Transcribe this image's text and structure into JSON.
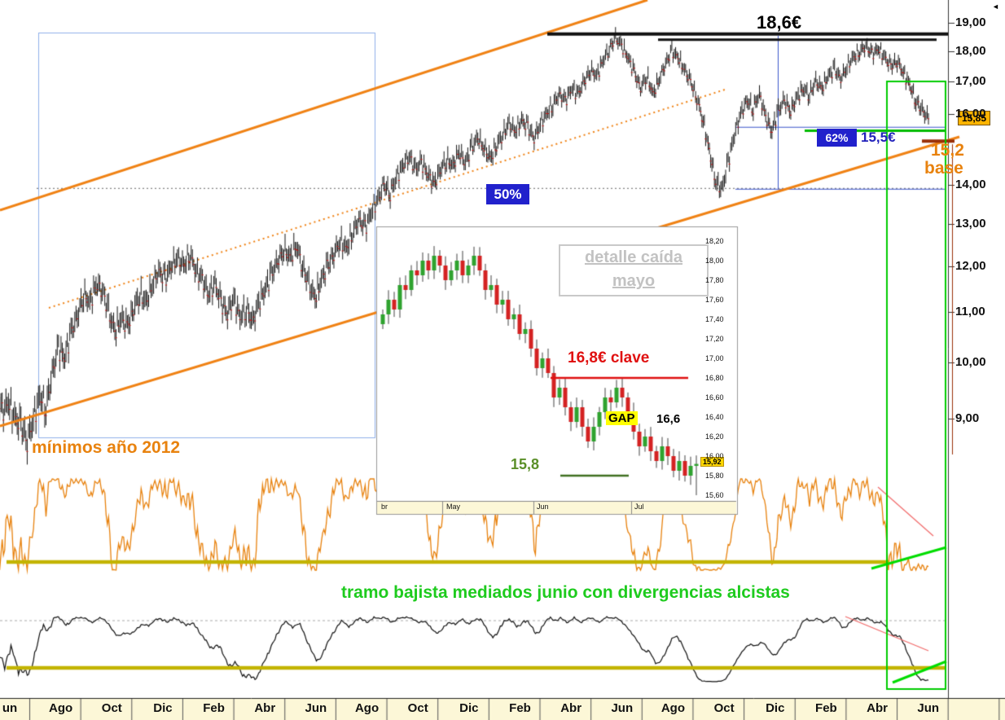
{
  "window": {
    "type": "stock-technical-analysis-chart"
  },
  "colors": {
    "orange": "#f08214",
    "olive": "#c3b400",
    "green_line": "#00bb00",
    "green_box": "#00cc00",
    "green_text": "#1ecb1e",
    "blue_badge": "#2121cc",
    "blue_text": "#2222bb",
    "red": "#e01010",
    "maroon": "#993008",
    "gray_title": "#c2c2c2",
    "tag_bg": "#ffb400",
    "cream": "#fcf7d7",
    "bar_black": "#151515",
    "bar_red": "#cc1111",
    "candle_up": "#2fa32f",
    "candle_down": "#d42222",
    "lightblue": "#8fb0ea",
    "blue_line": "#3a55cc"
  },
  "annotations": {
    "resistance_label": "18,6€",
    "fib50_label": "50%",
    "fib62_label": "62%",
    "level155_label": "15,5€",
    "price_tag": "15,85",
    "base_price": "15,2",
    "base_word": "base",
    "minimums_2012": "mínimos año 2012",
    "divergence_note": "tramo bajista mediados junio con divergencias alcistas",
    "scroll_arrow": "◄"
  },
  "inset": {
    "title_line1": "detalle caída",
    "title_line2": "mayo",
    "key_level_label": "16,8€ clave",
    "gap_label": "GAP",
    "gap_price": "16,6",
    "low_label": "15,8",
    "price_tag": "15,92",
    "axis_labels": [
      "18,20",
      "18,00",
      "17,80",
      "17,60",
      "17,40",
      "17,20",
      "17,00",
      "16,80",
      "16,60",
      "16,40",
      "16,20",
      "16,00",
      "15,80",
      "15,60"
    ],
    "month_labels": [
      "br",
      "May",
      "Jun",
      "Jul"
    ]
  },
  "axes": {
    "price_labels": [
      {
        "label": "19,00",
        "value": 19
      },
      {
        "label": "18,00",
        "value": 18
      },
      {
        "label": "17,00",
        "value": 17
      },
      {
        "label": "16,00",
        "value": 16
      },
      {
        "label": "14,00",
        "value": 14
      },
      {
        "label": "13,00",
        "value": 13
      },
      {
        "label": "12,00",
        "value": 12
      },
      {
        "label": "11,00",
        "value": 11
      },
      {
        "label": "10,00",
        "value": 10
      },
      {
        "label": "9,00",
        "value": 9
      }
    ],
    "month_labels": [
      "un",
      "Ago",
      "Oct",
      "Dic",
      "Feb",
      "Abr",
      "Jun",
      "Ago",
      "Oct",
      "Dic",
      "Feb",
      "Abr",
      "Jun",
      "Ago",
      "Oct",
      "Dic",
      "Feb",
      "Abr",
      "Jun"
    ]
  },
  "chart_data": [
    {
      "type": "bar",
      "name": "main-price-weekly",
      "period": "Jun 2012 - Jun 2015",
      "yscale": "log",
      "ylim": [
        8.4,
        19.6
      ],
      "levels": {
        "resistance": 18.6,
        "resistance2": 18.4,
        "fib50": 13.9,
        "fib62": 15.6,
        "support_green": 15.5,
        "base": 15.2,
        "last_price": 15.85
      },
      "weekly_closes": [
        9.4,
        9.1,
        9.3,
        9.0,
        8.9,
        8.65,
        9.0,
        9.4,
        9.2,
        9.8,
        10.3,
        10.1,
        10.6,
        10.9,
        11.4,
        11.2,
        11.6,
        11.5,
        11.0,
        10.6,
        10.9,
        10.7,
        11.1,
        11.4,
        11.2,
        11.6,
        11.9,
        11.7,
        12.0,
        12.2,
        12.0,
        12.3,
        11.9,
        11.7,
        11.4,
        11.6,
        11.2,
        11.0,
        11.3,
        10.9,
        11.1,
        10.8,
        11.2,
        11.5,
        11.8,
        12.1,
        12.4,
        12.2,
        12.5,
        12.0,
        11.6,
        11.3,
        11.7,
        12.0,
        12.3,
        12.6,
        12.4,
        12.8,
        13.1,
        12.9,
        13.3,
        13.6,
        14.0,
        13.8,
        14.2,
        14.5,
        14.8,
        14.4,
        14.6,
        14.3,
        14.0,
        14.4,
        14.7,
        14.5,
        14.9,
        14.6,
        15.0,
        15.3,
        15.0,
        14.7,
        15.1,
        15.4,
        15.7,
        15.5,
        15.8,
        15.6,
        15.3,
        15.7,
        16.0,
        16.3,
        16.6,
        16.4,
        16.8,
        16.6,
        17.0,
        17.4,
        17.2,
        17.7,
        18.1,
        18.45,
        18.2,
        17.8,
        17.3,
        16.8,
        17.2,
        16.6,
        17.1,
        17.6,
        18.0,
        17.8,
        17.4,
        17.0,
        16.5,
        15.8,
        14.9,
        14.1,
        13.85,
        14.6,
        15.4,
        16.0,
        16.4,
        16.2,
        16.6,
        15.9,
        15.5,
        16.1,
        16.4,
        16.1,
        16.5,
        16.8,
        16.6,
        17.0,
        16.8,
        17.2,
        17.4,
        17.1,
        17.5,
        17.8,
        18.0,
        18.2,
        17.9,
        18.1,
        17.8,
        17.5,
        17.7,
        17.3,
        16.9,
        16.4,
        16.1,
        15.85
      ]
    },
    {
      "type": "candlestick",
      "name": "inset-may-decline",
      "ylim": [
        15.55,
        18.25
      ],
      "levels": {
        "key": 16.8,
        "gap": 16.6,
        "low": 15.8,
        "last": 15.92
      },
      "closes": [
        17.45,
        17.6,
        17.5,
        17.75,
        17.7,
        17.9,
        17.85,
        18.0,
        17.9,
        18.05,
        17.95,
        17.8,
        17.9,
        18.0,
        17.85,
        17.95,
        18.05,
        17.9,
        17.7,
        17.75,
        17.55,
        17.6,
        17.4,
        17.45,
        17.25,
        17.3,
        17.1,
        16.9,
        17.0,
        16.85,
        16.6,
        16.7,
        16.5,
        16.35,
        16.5,
        16.3,
        16.15,
        16.3,
        16.45,
        16.6,
        16.55,
        16.7,
        16.6,
        16.45,
        16.25,
        16.1,
        16.2,
        16.05,
        15.95,
        16.1,
        16.0,
        15.85,
        15.95,
        15.8,
        15.9,
        15.92
      ]
    },
    {
      "type": "line",
      "name": "oscillator-orange",
      "derivation": "fast stochastic momentum of main price series",
      "range": [
        0,
        1
      ]
    },
    {
      "type": "line",
      "name": "oscillator-black",
      "derivation": "slow stochastic momentum of main price series",
      "range": [
        0,
        1
      ]
    }
  ]
}
